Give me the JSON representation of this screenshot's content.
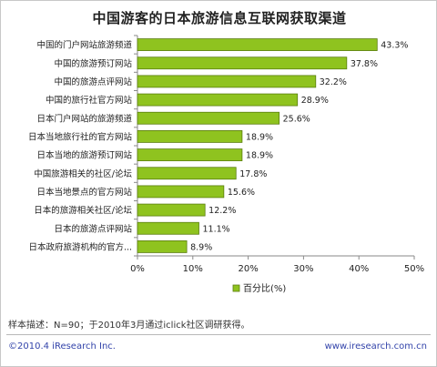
{
  "chart_data": {
    "type": "bar",
    "orientation": "horizontal",
    "title": "中国游客的日本旅游信息互联网获取渠道",
    "categories": [
      "中国的门户网站旅游频道",
      "中国的旅游预订网站",
      "中国的旅游点评网站",
      "中国的旅行社官方网站",
      "日本门户网站的旅游频道",
      "日本当地旅行社的官方网站",
      "日本当地的旅游预订网站",
      "中国旅游相关的社区/论坛",
      "日本当地景点的官方网站",
      "日本的旅游相关社区/论坛",
      "日本的旅游点评网站",
      "日本政府旅游机构的官方..."
    ],
    "values": [
      43.3,
      37.8,
      32.2,
      28.9,
      25.6,
      18.9,
      18.9,
      17.8,
      15.6,
      12.2,
      11.1,
      8.9
    ],
    "value_labels": [
      "43.3%",
      "37.8%",
      "32.2%",
      "28.9%",
      "25.6%",
      "18.9%",
      "18.9%",
      "17.8%",
      "15.6%",
      "12.2%",
      "11.1%",
      "8.9%"
    ],
    "xlim": [
      0,
      50
    ],
    "xticks": [
      "0%",
      "10%",
      "20%",
      "30%",
      "40%",
      "50%"
    ],
    "legend": "百分比(%)",
    "legend_position": "bottom",
    "grid": false,
    "colors": {
      "bar": "#8fc31f",
      "bar_border": "#5a7d0e",
      "axis": "#8a8a8a"
    }
  },
  "footer": {
    "sample_note": "样本描述：N=90；于2010年3月通过iclick社区调研获得。",
    "copyright": "©2010.4 iResearch Inc.",
    "website": "www.iresearch.com.cn"
  }
}
